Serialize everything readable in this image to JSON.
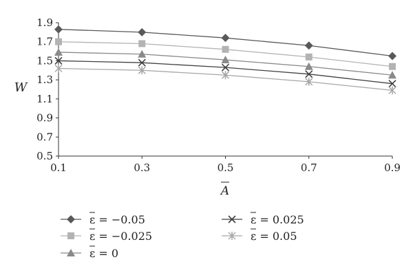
{
  "chart_data": {
    "type": "line",
    "title": "",
    "xlabel": "A",
    "ylabel": "W",
    "x": [
      0.1,
      0.3,
      0.5,
      0.7,
      0.9
    ],
    "x_tick_labels": [
      "0.1",
      "0.3",
      "0.5",
      "0.7",
      "0.9"
    ],
    "y_tick_labels": [
      "0.5",
      "0.7",
      "0.9",
      "1.1",
      "1.3",
      "1.5",
      "1.7",
      "1.9"
    ],
    "xlim": [
      0.1,
      0.9
    ],
    "ylim": [
      0.5,
      1.9
    ],
    "grid": false,
    "legend_position": "bottom",
    "series": [
      {
        "name": "ε = −0.05",
        "marker": "diamond",
        "color": "#595959",
        "values": [
          1.83,
          1.8,
          1.74,
          1.66,
          1.55
        ]
      },
      {
        "name": "ε = −0.025",
        "marker": "square",
        "color": "#b3b3b3",
        "values": [
          1.7,
          1.68,
          1.62,
          1.54,
          1.44
        ]
      },
      {
        "name": "ε = 0",
        "marker": "triangle",
        "color": "#8a8a8a",
        "values": [
          1.59,
          1.57,
          1.51,
          1.44,
          1.35
        ]
      },
      {
        "name": "ε = 0.025",
        "marker": "x",
        "color": "#404040",
        "values": [
          1.5,
          1.48,
          1.43,
          1.36,
          1.26
        ]
      },
      {
        "name": "ε = 0.05",
        "marker": "star",
        "color": "#a6a6a6",
        "values": [
          1.42,
          1.4,
          1.35,
          1.28,
          1.19
        ]
      }
    ]
  }
}
